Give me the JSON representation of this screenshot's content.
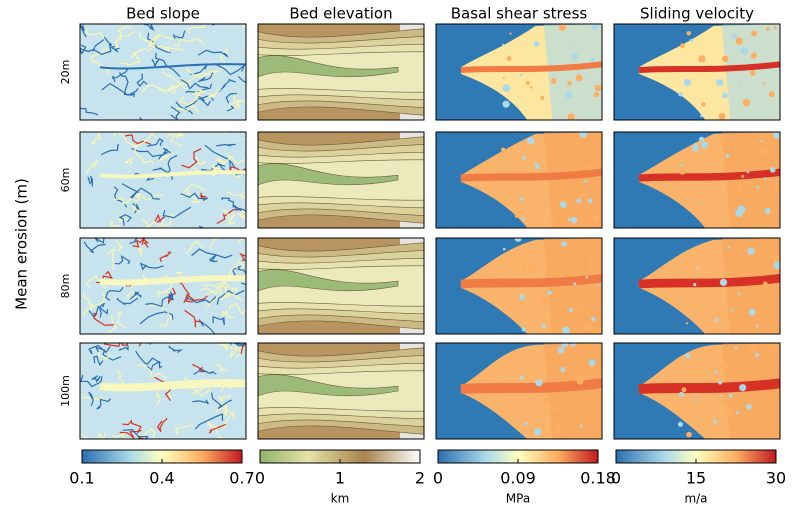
{
  "ylabel": "Mean erosion (m)",
  "rows": [
    "20m",
    "60m",
    "80m",
    "100m"
  ],
  "columns": [
    {
      "title": "Bed slope",
      "colorbar": {
        "lim": [
          0.1,
          0.7
        ],
        "ticks": [
          0.1,
          0.4,
          0.7
        ]
      }
    },
    {
      "title": "Bed elevation",
      "colorbar": {
        "lim": [
          0,
          2
        ],
        "ticks": [
          0,
          1,
          2
        ],
        "unit": "km"
      }
    },
    {
      "title": "Basal shear stress",
      "colorbar": {
        "lim": [
          0,
          0.18
        ],
        "ticks": [
          0,
          0.09,
          0.18
        ],
        "unit": "MPa"
      }
    },
    {
      "title": "Sliding velocity",
      "colorbar": {
        "lim": [
          0,
          30
        ],
        "ticks": [
          0,
          15,
          30
        ],
        "unit": "m/a"
      }
    }
  ]
}
